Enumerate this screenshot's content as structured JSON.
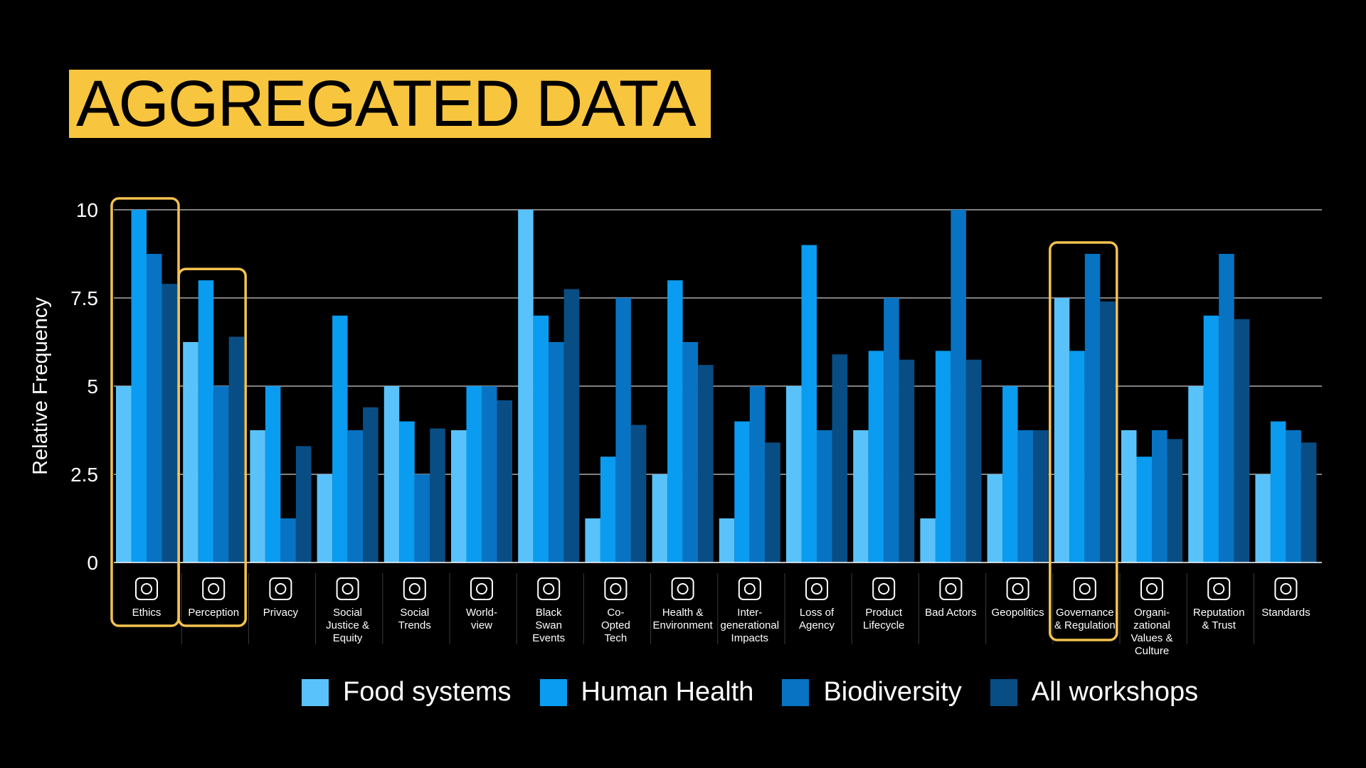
{
  "title": "AGGREGATED DATA",
  "colors": {
    "title_bg": "#f8c53e",
    "highlight_box": "#f3c250",
    "series": [
      "#5ac2fa",
      "#0a9cf0",
      "#0873c2",
      "#084e85"
    ]
  },
  "highlighted_categories": [
    "Ethics",
    "Perception",
    "Governance & Regulation"
  ],
  "chart_data": {
    "type": "bar",
    "ylabel": "Relative Frequency",
    "xlabel": "",
    "ylim": [
      0,
      10
    ],
    "yticks": [
      "0",
      "2.5",
      "5",
      "7.5",
      "10"
    ],
    "grid": true,
    "legend_position": "bottom",
    "categories": [
      "Ethics",
      "Perception",
      "Privacy",
      "Social Justice & Equity",
      "Social Trends",
      "World-view",
      "Black Swan Events",
      "Co-Opted Tech",
      "Health & Environment",
      "Inter-generational Impacts",
      "Loss of Agency",
      "Product Lifecycle",
      "Bad Actors",
      "Geopolitics",
      "Governance & Regulation",
      "Organi-zational Values & Culture",
      "Reputation & Trust",
      "Standards"
    ],
    "category_label_lines": [
      [
        "Ethics"
      ],
      [
        "Perception"
      ],
      [
        "Privacy"
      ],
      [
        "Social",
        "Justice &",
        "Equity"
      ],
      [
        "Social",
        "Trends"
      ],
      [
        "World-",
        "view"
      ],
      [
        "Black",
        "Swan",
        "Events"
      ],
      [
        "Co-",
        "Opted",
        "Tech"
      ],
      [
        "Health &",
        "Environment"
      ],
      [
        "Inter-",
        "generational",
        "Impacts"
      ],
      [
        "Loss of",
        "Agency"
      ],
      [
        "Product",
        "Lifecycle"
      ],
      [
        "Bad Actors"
      ],
      [
        "Geopolitics"
      ],
      [
        "Governance",
        "& Regulation"
      ],
      [
        "Organi-",
        "zational",
        "Values &",
        "Culture"
      ],
      [
        "Reputation",
        "& Trust"
      ],
      [
        "Standards"
      ]
    ],
    "category_icons": [
      "book-icon",
      "perception-icon",
      "privacy-eye-icon",
      "scales-icon",
      "social-phone-icon",
      "globe-icon",
      "swan-icon",
      "co-opted-head-icon",
      "tree-icon",
      "dna-icon",
      "person-lock-icon",
      "recycle-chip-icon",
      "bad-actor-head-icon",
      "globe-building-icon",
      "books-icon",
      "people-gear-icon",
      "award-icon",
      "certificate-icon"
    ],
    "series": [
      {
        "name": "Food systems",
        "values": [
          5,
          6.25,
          3.75,
          2.5,
          5,
          3.75,
          10,
          1.25,
          2.5,
          1.25,
          5,
          3.75,
          1.25,
          2.5,
          7.5,
          3.75,
          5,
          2.5
        ]
      },
      {
        "name": "Human Health",
        "values": [
          10,
          8,
          5,
          7,
          4,
          5,
          7,
          3,
          8,
          4,
          9,
          6,
          6,
          5,
          6,
          3,
          7,
          4
        ]
      },
      {
        "name": "Biodiversity",
        "values": [
          8.75,
          5,
          1.25,
          3.75,
          2.5,
          5,
          6.25,
          7.5,
          6.25,
          5,
          3.75,
          7.5,
          10,
          3.75,
          8.75,
          3.75,
          8.75,
          3.75
        ]
      },
      {
        "name": "All workshops",
        "values": [
          7.9,
          6.4,
          3.3,
          4.4,
          3.8,
          4.6,
          7.75,
          3.9,
          5.6,
          3.4,
          5.9,
          5.75,
          5.75,
          3.75,
          7.4,
          3.5,
          6.9,
          3.4
        ]
      }
    ]
  }
}
